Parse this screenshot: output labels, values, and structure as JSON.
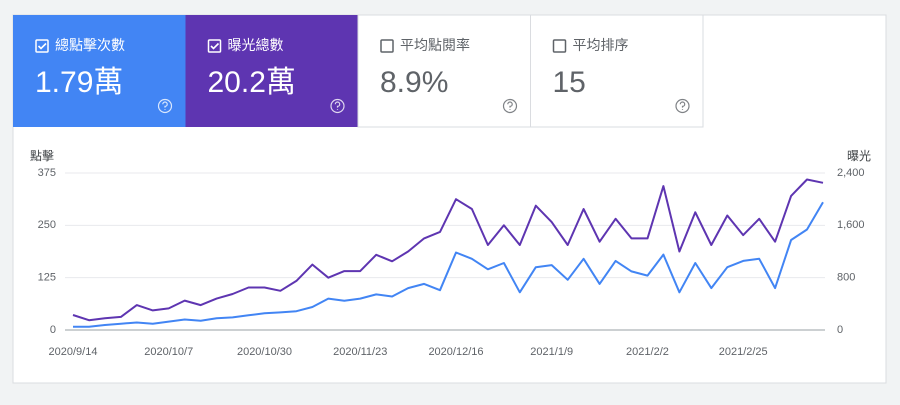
{
  "cards": [
    {
      "label": "總點擊次數",
      "value": "1.79萬",
      "checked": true,
      "color": "#4285f4"
    },
    {
      "label": "曝光總數",
      "value": "20.2萬",
      "checked": true,
      "color": "#5e35b1"
    },
    {
      "label": "平均點閱率",
      "value": "8.9%",
      "checked": false,
      "color": "#ffffff"
    },
    {
      "label": "平均排序",
      "value": "15",
      "checked": false,
      "color": "#ffffff"
    }
  ],
  "chart_data": {
    "type": "line",
    "ylabel": "點擊",
    "y2label": "曝光",
    "categories": [
      "2020/9/14",
      null,
      null,
      null,
      null,
      null,
      "2020/10/7",
      null,
      null,
      null,
      null,
      null,
      "2020/10/30",
      null,
      null,
      null,
      null,
      null,
      "2020/11/23",
      null,
      null,
      null,
      null,
      null,
      "2020/12/16",
      null,
      null,
      null,
      null,
      null,
      "2021/1/9",
      null,
      null,
      null,
      null,
      null,
      "2021/2/2",
      null,
      null,
      null,
      null,
      null,
      "2021/2/25",
      null,
      null,
      null,
      null,
      null
    ],
    "series": [
      {
        "color": "#4285f4",
        "values": [
          8,
          8,
          12,
          15,
          18,
          15,
          20,
          25,
          22,
          28,
          30,
          35,
          40,
          42,
          45,
          55,
          75,
          70,
          75,
          85,
          80,
          100,
          110,
          95,
          185,
          170,
          145,
          160,
          90,
          150,
          155,
          120,
          170,
          110,
          165,
          140,
          130,
          180,
          90,
          160,
          100,
          150,
          165,
          170,
          100,
          215,
          240,
          305
        ]
      },
      {
        "color": "#5e35b1",
        "axis": "y2",
        "values": [
          230,
          150,
          180,
          200,
          380,
          300,
          330,
          450,
          380,
          480,
          550,
          650,
          650,
          600,
          750,
          1000,
          800,
          900,
          900,
          1150,
          1050,
          1200,
          1400,
          1500,
          2000,
          1850,
          1300,
          1600,
          1300,
          1900,
          1650,
          1300,
          1850,
          1350,
          1700,
          1400,
          1400,
          2200,
          1200,
          1800,
          1300,
          1750,
          1450,
          1700,
          1350,
          2050,
          2300,
          2250
        ]
      }
    ],
    "ylim": [
      0,
      375
    ],
    "yticks": [
      0,
      125,
      250,
      375
    ],
    "y2lim": [
      0,
      2400
    ],
    "y2ticks": [
      0,
      800,
      {
        "value": 1600,
        "label": "1,600"
      },
      {
        "value": 2400,
        "label": "2,400"
      }
    ],
    "grid": true
  }
}
